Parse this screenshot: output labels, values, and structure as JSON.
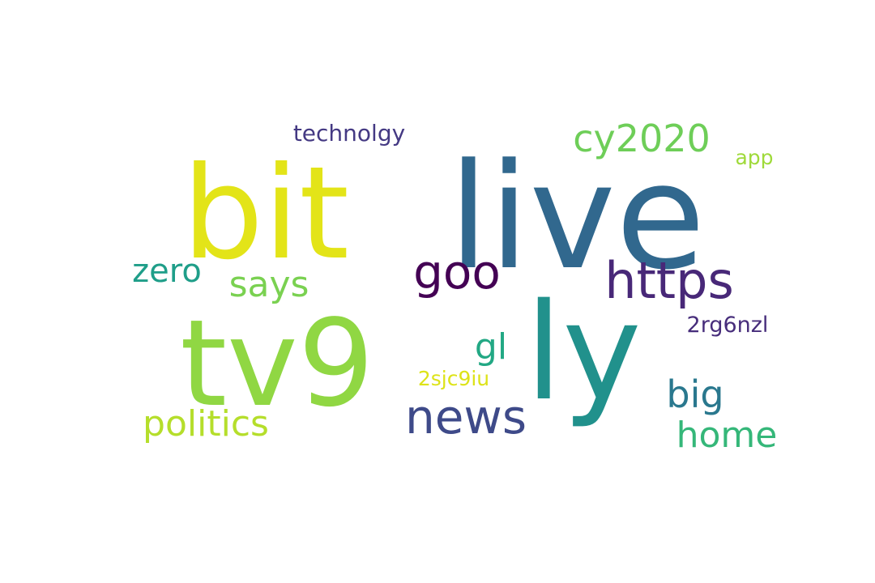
{
  "words": [
    {
      "id": "live",
      "text": "live",
      "color": "#31688e"
    },
    {
      "id": "bit",
      "text": "bit",
      "color": "#e3e418"
    },
    {
      "id": "ly",
      "text": "ly",
      "color": "#21918c"
    },
    {
      "id": "tv9",
      "text": "tv9",
      "color": "#90d743"
    },
    {
      "id": "https",
      "text": "https",
      "color": "#482878"
    },
    {
      "id": "goo",
      "text": "goo",
      "color": "#440154"
    },
    {
      "id": "news",
      "text": "news",
      "color": "#3e4a89"
    },
    {
      "id": "cy2020",
      "text": "cy2020",
      "color": "#6ece58"
    },
    {
      "id": "politics",
      "text": "politics",
      "color": "#b5de2b"
    },
    {
      "id": "says",
      "text": "says",
      "color": "#7ad151"
    },
    {
      "id": "zero",
      "text": "zero",
      "color": "#1f9e89"
    },
    {
      "id": "home",
      "text": "home",
      "color": "#35b779"
    },
    {
      "id": "big",
      "text": "big",
      "color": "#2a788e"
    },
    {
      "id": "gl",
      "text": "gl",
      "color": "#22a884"
    },
    {
      "id": "technolgy",
      "text": "technolgy",
      "color": "#443983"
    },
    {
      "id": "2rg6nzl",
      "text": "2rg6nzl",
      "color": "#472d7b"
    },
    {
      "id": "2sjc9iu",
      "text": "2sjc9iu",
      "color": "#dde318"
    },
    {
      "id": "app",
      "text": "app",
      "color": "#9fda3a"
    }
  ]
}
